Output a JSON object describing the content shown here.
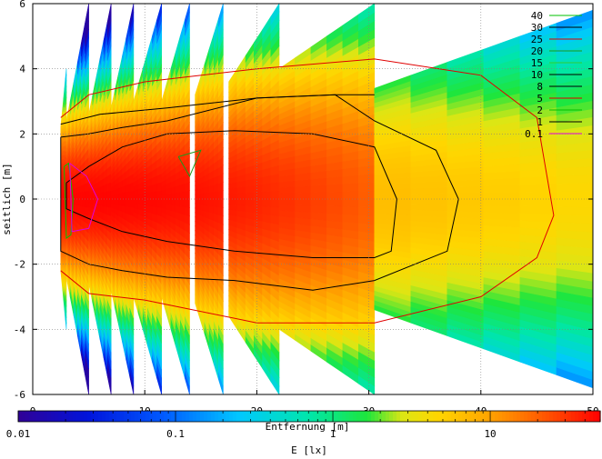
{
  "chart_data": {
    "type": "heatmap",
    "title": "",
    "xlabel": "Entfernung [m]",
    "ylabel": "seitlich [m]",
    "colorbar_label": "E [lx]",
    "xlim": [
      0,
      50
    ],
    "ylim": [
      -6,
      6
    ],
    "x_ticks": [
      "0",
      "10",
      "20",
      "30",
      "40",
      "50"
    ],
    "y_ticks": [
      "-6",
      "-4",
      "-2",
      "0",
      "2",
      "4",
      "6"
    ],
    "colorbar_scale": "log",
    "colorbar_range": [
      0.01,
      50
    ],
    "colorbar_ticks": [
      "0.01",
      "0.1",
      "1",
      "10"
    ],
    "grid": true,
    "legend_position": "top-right",
    "contour_levels": [
      {
        "label": "40",
        "value": 40,
        "color": "#00c000"
      },
      {
        "label": "30",
        "value": 30,
        "color": "#000000"
      },
      {
        "label": "25",
        "value": 25,
        "color": "#e00000"
      },
      {
        "label": "20",
        "value": 20,
        "color": "#1a9a1a"
      },
      {
        "label": "15",
        "value": 15,
        "color": "#30d030"
      },
      {
        "label": "10",
        "value": 10,
        "color": "#000000"
      },
      {
        "label": "8",
        "value": 8,
        "color": "#000000"
      },
      {
        "label": "5",
        "value": 5,
        "color": "#e00000"
      },
      {
        "label": "2",
        "value": 2,
        "color": "#00c000"
      },
      {
        "label": "1",
        "value": 1,
        "color": "#000000"
      },
      {
        "label": "0.1",
        "value": 0.1,
        "color": "#e000e0"
      }
    ],
    "segments": [
      {
        "x": [
          2.5,
          3.0
        ],
        "y_near": 2.2,
        "y_far": 4.0
      },
      {
        "x": [
          3.0,
          5.0
        ],
        "y_near": 2.4,
        "y_far": 6.0
      },
      {
        "x": [
          5.0,
          7.0
        ],
        "y_near": 2.6,
        "y_far": 6.0
      },
      {
        "x": [
          7.0,
          9.0
        ],
        "y_near": 2.8,
        "y_far": 6.0
      },
      {
        "x": [
          9.0,
          11.5
        ],
        "y_near": 3.0,
        "y_far": 6.0
      },
      {
        "x": [
          11.5,
          14.0
        ],
        "y_near": 3.0,
        "y_far": 6.0
      },
      {
        "x": [
          14.5,
          17.0
        ],
        "y_near": 3.2,
        "y_far": 6.0
      },
      {
        "x": [
          17.5,
          22.0
        ],
        "y_near": 3.6,
        "y_far": 6.0
      },
      {
        "x": [
          22.0,
          30.5
        ],
        "y_near": 4.0,
        "y_far": 6.0
      },
      {
        "x": [
          30.5,
          50.0
        ],
        "y_near": 3.4,
        "y_far": 5.8
      }
    ],
    "iso_curves": [
      {
        "level": "30",
        "x": [
          3,
          5,
          8,
          12,
          18,
          25,
          30.5,
          32.5,
          32,
          30.5,
          25,
          18,
          12,
          8,
          5,
          3,
          3
        ],
        "y": [
          0.5,
          1.0,
          1.6,
          2.0,
          2.1,
          2.0,
          1.6,
          0,
          -1.6,
          -1.8,
          -1.8,
          -1.6,
          -1.3,
          -1.0,
          -0.6,
          -0.3,
          0.5
        ]
      },
      {
        "level": "10",
        "x": [
          2.5,
          5,
          8,
          12,
          20,
          27,
          30.5,
          36,
          38,
          37,
          30.5,
          25,
          18,
          12,
          8,
          5,
          2.5,
          2.5
        ],
        "y": [
          1.9,
          2.0,
          2.2,
          2.4,
          3.1,
          3.2,
          2.4,
          1.5,
          0,
          -1.6,
          -2.5,
          -2.8,
          -2.5,
          -2.4,
          -2.2,
          -2.0,
          -1.6,
          1.9
        ]
      },
      {
        "level": "5",
        "x": [
          2.5,
          5,
          10,
          20,
          30.5,
          40,
          45,
          46.5,
          45,
          40,
          30.5,
          20,
          10,
          5,
          2.5
        ],
        "y": [
          2.5,
          3.2,
          3.6,
          4.0,
          4.3,
          3.8,
          2.5,
          -0.5,
          -1.8,
          -3.0,
          -3.8,
          -3.8,
          -3.1,
          -2.9,
          -2.2
        ]
      },
      {
        "level": "1",
        "x": [
          2.5,
          6,
          12,
          20,
          27,
          30.5
        ],
        "y": [
          2.3,
          2.6,
          2.8,
          3.1,
          3.2,
          3.2
        ]
      },
      {
        "level": "40",
        "x": [
          2.8,
          3.2,
          3.6,
          3.4,
          3.0,
          2.8
        ],
        "y": [
          1.0,
          1.1,
          0,
          -1.1,
          -1.2,
          1.0
        ]
      },
      {
        "level": "0.1",
        "x": [
          3.3,
          4.8,
          5.8,
          5.0,
          3.5,
          3.3
        ],
        "y": [
          1.1,
          0.7,
          0,
          -0.9,
          -1.0,
          1.1
        ]
      },
      {
        "level": "20",
        "x": [
          13,
          15,
          14,
          13
        ],
        "y": [
          1.3,
          1.5,
          0.7,
          1.3
        ]
      }
    ]
  }
}
